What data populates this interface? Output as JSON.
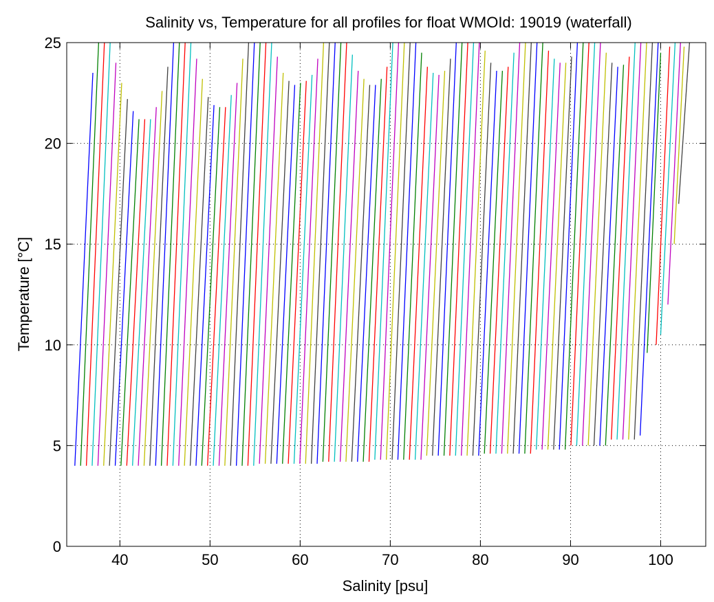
{
  "chart_data": {
    "type": "line",
    "title": "Salinity vs, Temperature for all profiles for float WMOId: 19019 (waterfall)",
    "x_label": "Salinity [psu]",
    "y_label": "Temperature [°C]",
    "xlim": [
      34.1,
      105
    ],
    "ylim": [
      0,
      25
    ],
    "xticks": [
      40,
      50,
      60,
      70,
      80,
      90,
      100
    ],
    "yticks": [
      0,
      5,
      10,
      15,
      20,
      25
    ],
    "grid": true,
    "colors": [
      "#0000ff",
      "#008000",
      "#ff0000",
      "#00bfbf",
      "#bf00bf",
      "#bfbf00",
      "#404040"
    ],
    "series": [
      {
        "x": [
          35.0,
          37.0
        ],
        "values": [
          4.0,
          23.5
        ]
      },
      {
        "x": [
          35.64,
          37.64
        ],
        "values": [
          4.0,
          25
        ]
      },
      {
        "x": [
          36.28,
          38.28
        ],
        "values": [
          4.0,
          25
        ]
      },
      {
        "x": [
          36.92,
          38.92
        ],
        "values": [
          4.0,
          25
        ]
      },
      {
        "x": [
          37.56,
          39.56
        ],
        "values": [
          4.0,
          24.0
        ]
      },
      {
        "x": [
          38.2,
          40.2
        ],
        "values": [
          4.0,
          23.0
        ]
      },
      {
        "x": [
          38.84,
          40.84
        ],
        "values": [
          4.0,
          22.2
        ]
      },
      {
        "x": [
          39.48,
          41.48
        ],
        "values": [
          4.0,
          21.6
        ]
      },
      {
        "x": [
          40.12,
          42.12
        ],
        "values": [
          4.0,
          21.2
        ]
      },
      {
        "x": [
          40.76,
          42.76
        ],
        "values": [
          4.0,
          21.2
        ]
      },
      {
        "x": [
          41.4,
          43.4
        ],
        "values": [
          4.0,
          21.2
        ]
      },
      {
        "x": [
          42.04,
          44.04
        ],
        "values": [
          4.0,
          21.8
        ]
      },
      {
        "x": [
          42.68,
          44.68
        ],
        "values": [
          4.0,
          22.6
        ]
      },
      {
        "x": [
          43.32,
          45.32
        ],
        "values": [
          4.0,
          23.8
        ]
      },
      {
        "x": [
          43.96,
          45.96
        ],
        "values": [
          4.0,
          25
        ]
      },
      {
        "x": [
          44.6,
          46.6
        ],
        "values": [
          4.0,
          25
        ]
      },
      {
        "x": [
          45.24,
          47.24
        ],
        "values": [
          4.0,
          25
        ]
      },
      {
        "x": [
          45.88,
          47.88
        ],
        "values": [
          4.0,
          25
        ]
      },
      {
        "x": [
          46.52,
          48.52
        ],
        "values": [
          4.0,
          24.2
        ]
      },
      {
        "x": [
          47.16,
          49.16
        ],
        "values": [
          4.0,
          23.2
        ]
      },
      {
        "x": [
          47.8,
          49.8
        ],
        "values": [
          4.0,
          22.3
        ]
      },
      {
        "x": [
          48.44,
          50.44
        ],
        "values": [
          4.0,
          21.9
        ]
      },
      {
        "x": [
          49.08,
          51.08
        ],
        "values": [
          4.0,
          21.8
        ]
      },
      {
        "x": [
          49.72,
          51.72
        ],
        "values": [
          4.0,
          21.8
        ]
      },
      {
        "x": [
          50.36,
          52.36
        ],
        "values": [
          4.0,
          22.4
        ]
      },
      {
        "x": [
          51.0,
          53.0
        ],
        "values": [
          4.0,
          23.0
        ]
      },
      {
        "x": [
          51.64,
          53.64
        ],
        "values": [
          4.0,
          24.2
        ]
      },
      {
        "x": [
          52.28,
          54.28
        ],
        "values": [
          4.0,
          25
        ]
      },
      {
        "x": [
          52.92,
          54.92
        ],
        "values": [
          4.0,
          25
        ]
      },
      {
        "x": [
          53.56,
          55.56
        ],
        "values": [
          4.0,
          25
        ]
      },
      {
        "x": [
          54.2,
          56.2
        ],
        "values": [
          4.0,
          25
        ]
      },
      {
        "x": [
          54.84,
          56.84
        ],
        "values": [
          4.0,
          25
        ]
      },
      {
        "x": [
          55.48,
          57.48
        ],
        "values": [
          4.1,
          24.3
        ]
      },
      {
        "x": [
          56.12,
          58.12
        ],
        "values": [
          4.1,
          23.5
        ]
      },
      {
        "x": [
          56.76,
          58.76
        ],
        "values": [
          4.1,
          23.1
        ]
      },
      {
        "x": [
          57.4,
          59.4
        ],
        "values": [
          4.1,
          22.9
        ]
      },
      {
        "x": [
          58.04,
          60.04
        ],
        "values": [
          4.1,
          23.0
        ]
      },
      {
        "x": [
          58.68,
          60.68
        ],
        "values": [
          4.1,
          23.1
        ]
      },
      {
        "x": [
          59.32,
          61.32
        ],
        "values": [
          4.1,
          23.4
        ]
      },
      {
        "x": [
          59.96,
          61.96
        ],
        "values": [
          4.1,
          24.2
        ]
      },
      {
        "x": [
          60.6,
          62.6
        ],
        "values": [
          4.1,
          25
        ]
      },
      {
        "x": [
          61.24,
          63.24
        ],
        "values": [
          4.1,
          25
        ]
      },
      {
        "x": [
          61.88,
          63.88
        ],
        "values": [
          4.1,
          25
        ]
      },
      {
        "x": [
          62.52,
          64.52
        ],
        "values": [
          4.2,
          25
        ]
      },
      {
        "x": [
          63.16,
          65.16
        ],
        "values": [
          4.2,
          25
        ]
      },
      {
        "x": [
          63.8,
          65.8
        ],
        "values": [
          4.2,
          24.4
        ]
      },
      {
        "x": [
          64.44,
          66.44
        ],
        "values": [
          4.2,
          23.6
        ]
      },
      {
        "x": [
          65.08,
          67.08
        ],
        "values": [
          4.2,
          23.2
        ]
      },
      {
        "x": [
          65.72,
          67.72
        ],
        "values": [
          4.2,
          22.9
        ]
      },
      {
        "x": [
          66.36,
          68.36
        ],
        "values": [
          4.2,
          22.9
        ]
      },
      {
        "x": [
          67.0,
          69.0
        ],
        "values": [
          4.2,
          23.2
        ]
      },
      {
        "x": [
          67.64,
          69.64
        ],
        "values": [
          4.2,
          23.8
        ]
      },
      {
        "x": [
          68.28,
          70.28
        ],
        "values": [
          4.3,
          25
        ]
      },
      {
        "x": [
          68.92,
          70.92
        ],
        "values": [
          4.3,
          25
        ]
      },
      {
        "x": [
          69.56,
          71.56
        ],
        "values": [
          4.3,
          25
        ]
      },
      {
        "x": [
          70.2,
          72.2
        ],
        "values": [
          4.3,
          25
        ]
      },
      {
        "x": [
          70.84,
          72.84
        ],
        "values": [
          4.3,
          25
        ]
      },
      {
        "x": [
          71.48,
          73.48
        ],
        "values": [
          4.3,
          24.5
        ]
      },
      {
        "x": [
          72.12,
          74.12
        ],
        "values": [
          4.3,
          23.8
        ]
      },
      {
        "x": [
          72.76,
          74.76
        ],
        "values": [
          4.3,
          23.5
        ]
      },
      {
        "x": [
          73.4,
          75.4
        ],
        "values": [
          4.3,
          23.4
        ]
      },
      {
        "x": [
          74.04,
          76.04
        ],
        "values": [
          4.5,
          23.6
        ]
      },
      {
        "x": [
          74.68,
          76.68
        ],
        "values": [
          4.5,
          24.2
        ]
      },
      {
        "x": [
          75.32,
          77.32
        ],
        "values": [
          4.5,
          25
        ]
      },
      {
        "x": [
          75.96,
          77.96
        ],
        "values": [
          4.5,
          25
        ]
      },
      {
        "x": [
          76.6,
          78.6
        ],
        "values": [
          4.5,
          25
        ]
      },
      {
        "x": [
          77.24,
          79.24
        ],
        "values": [
          4.5,
          25
        ]
      },
      {
        "x": [
          77.88,
          79.88
        ],
        "values": [
          4.5,
          25
        ]
      },
      {
        "x": [
          78.52,
          80.52
        ],
        "values": [
          4.5,
          24.6
        ]
      },
      {
        "x": [
          79.16,
          81.16
        ],
        "values": [
          4.5,
          24.0
        ]
      },
      {
        "x": [
          79.8,
          81.8
        ],
        "values": [
          4.5,
          23.6
        ]
      },
      {
        "x": [
          80.44,
          82.44
        ],
        "values": [
          4.6,
          23.6
        ]
      },
      {
        "x": [
          81.08,
          83.08
        ],
        "values": [
          4.6,
          23.8
        ]
      },
      {
        "x": [
          81.72,
          83.72
        ],
        "values": [
          4.6,
          24.5
        ]
      },
      {
        "x": [
          82.36,
          84.36
        ],
        "values": [
          4.6,
          25
        ]
      },
      {
        "x": [
          83.0,
          85.0
        ],
        "values": [
          4.6,
          25
        ]
      },
      {
        "x": [
          83.64,
          85.64
        ],
        "values": [
          4.6,
          25
        ]
      },
      {
        "x": [
          84.28,
          86.28
        ],
        "values": [
          4.6,
          25
        ]
      },
      {
        "x": [
          84.92,
          86.92
        ],
        "values": [
          4.6,
          25
        ]
      },
      {
        "x": [
          85.56,
          87.56
        ],
        "values": [
          4.6,
          24.6
        ]
      },
      {
        "x": [
          86.2,
          88.2
        ],
        "values": [
          4.8,
          24.2
        ]
      },
      {
        "x": [
          86.84,
          88.84
        ],
        "values": [
          4.8,
          24.0
        ]
      },
      {
        "x": [
          87.48,
          89.48
        ],
        "values": [
          4.8,
          24.0
        ]
      },
      {
        "x": [
          88.12,
          90.12
        ],
        "values": [
          4.8,
          24.3
        ]
      },
      {
        "x": [
          88.76,
          90.76
        ],
        "values": [
          4.8,
          25
        ]
      },
      {
        "x": [
          89.4,
          91.4
        ],
        "values": [
          4.8,
          25
        ]
      },
      {
        "x": [
          90.04,
          92.04
        ],
        "values": [
          5.0,
          25
        ]
      },
      {
        "x": [
          90.68,
          92.68
        ],
        "values": [
          5.0,
          25
        ]
      },
      {
        "x": [
          91.32,
          93.32
        ],
        "values": [
          5.0,
          25
        ]
      },
      {
        "x": [
          91.96,
          93.96
        ],
        "values": [
          5.0,
          24.5
        ]
      },
      {
        "x": [
          92.6,
          94.6
        ],
        "values": [
          5.0,
          24.0
        ]
      },
      {
        "x": [
          93.24,
          95.24
        ],
        "values": [
          5.0,
          23.8
        ]
      },
      {
        "x": [
          93.88,
          95.88
        ],
        "values": [
          5.0,
          23.9
        ]
      },
      {
        "x": [
          94.52,
          96.52
        ],
        "values": [
          5.3,
          24.3
        ]
      },
      {
        "x": [
          95.16,
          97.16
        ],
        "values": [
          5.3,
          25
        ]
      },
      {
        "x": [
          95.8,
          97.8
        ],
        "values": [
          5.3,
          25
        ]
      },
      {
        "x": [
          96.44,
          98.44
        ],
        "values": [
          5.3,
          25
        ]
      },
      {
        "x": [
          97.08,
          99.08
        ],
        "values": [
          5.3,
          25
        ]
      },
      {
        "x": [
          97.72,
          99.72
        ],
        "values": [
          5.5,
          25
        ]
      },
      {
        "x": [
          98.5,
          100.0
        ],
        "values": [
          9.6,
          24.5
        ]
      },
      {
        "x": [
          99.5,
          101.0
        ],
        "values": [
          10.0,
          24.8
        ]
      },
      {
        "x": [
          100.0,
          101.6
        ],
        "values": [
          10.5,
          25
        ]
      },
      {
        "x": [
          100.8,
          102.2
        ],
        "values": [
          12.0,
          25
        ]
      },
      {
        "x": [
          101.5,
          102.6
        ],
        "values": [
          15.0,
          24.8
        ]
      },
      {
        "x": [
          102.0,
          103.2
        ],
        "values": [
          17.0,
          25
        ]
      }
    ]
  }
}
